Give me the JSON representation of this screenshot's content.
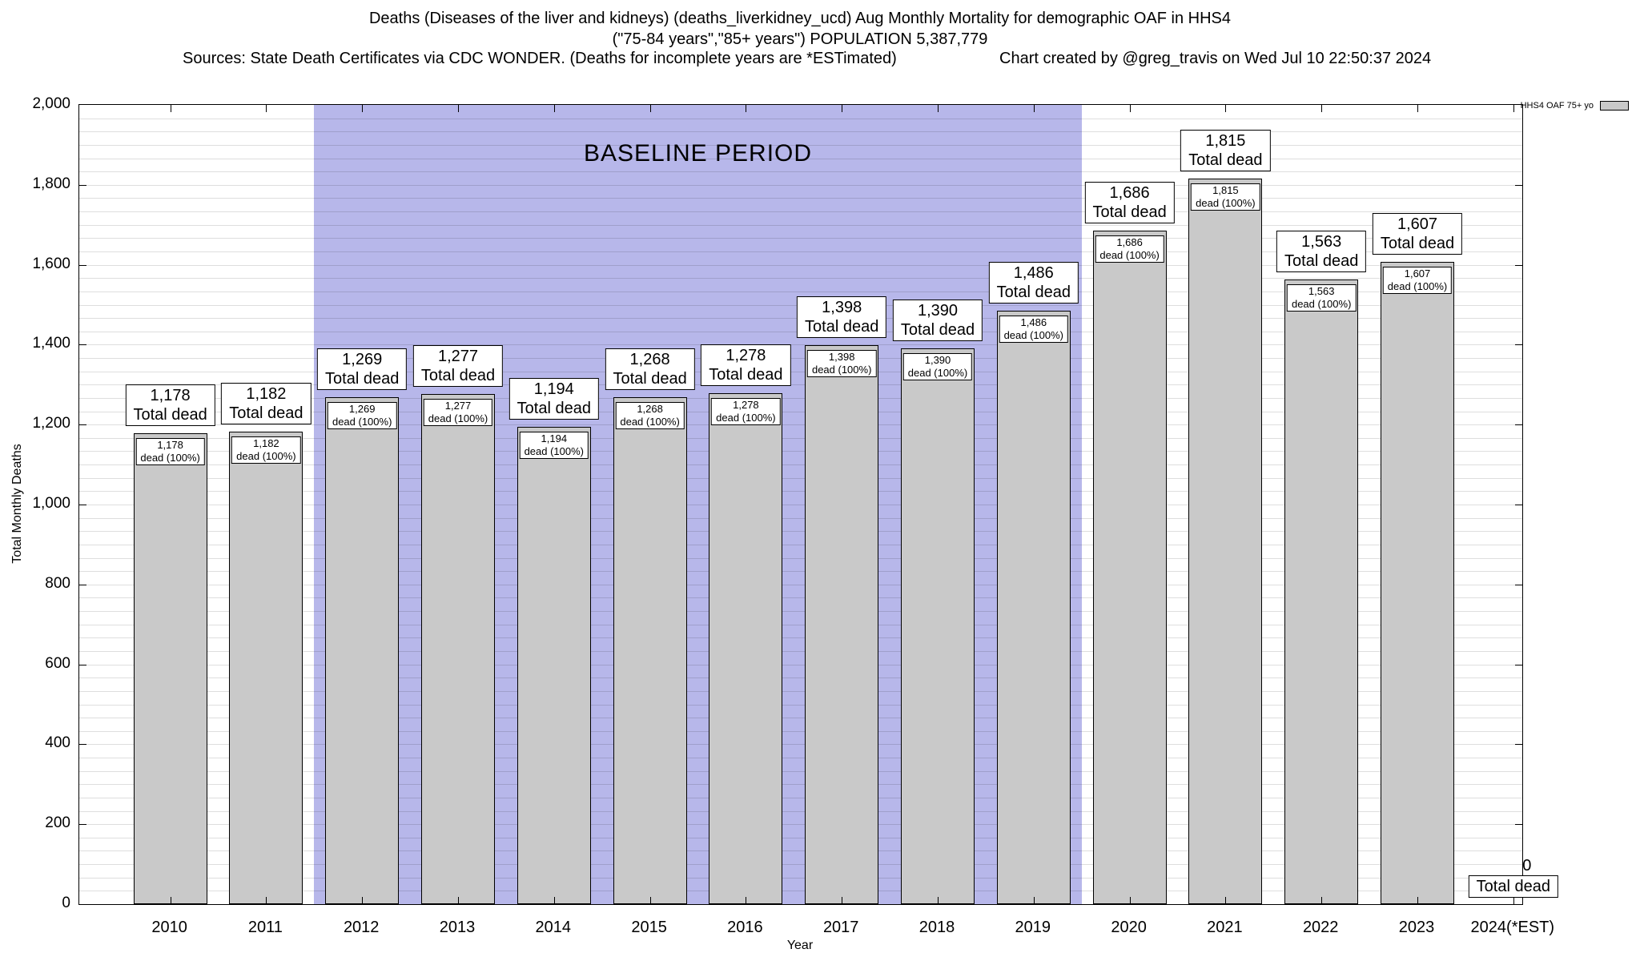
{
  "chart_data": {
    "type": "bar",
    "title": "Deaths (Diseases of the liver and kidneys) (deaths_liverkidney_ucd) Aug Monthly Mortality for demographic OAF in HHS4",
    "subtitle": "(\"75-84 years\",\"85+ years\") POPULATION 5,387,779",
    "sources_note": "Sources: State Death Certificates via CDC WONDER. (Deaths for incomplete years are *ESTimated)",
    "credit": "Chart created by @greg_travis on Wed Jul 10 22:50:37 2024",
    "xlabel": "Year",
    "ylabel": "Total Monthly Deaths",
    "ylim": [
      0,
      2000
    ],
    "ytick_interval": 200,
    "ytick_labels": [
      "0",
      "200",
      "400",
      "600",
      "800",
      "1,000",
      "1,200",
      "1,400",
      "1,600",
      "1,800",
      "2,000"
    ],
    "minor_gridline_count": 60,
    "grid": true,
    "legend": {
      "label": "HHS4 OAF 75+ yo",
      "position": "top-right",
      "swatch_color": "#c9c9c9"
    },
    "categories": [
      "2010",
      "2011",
      "2012",
      "2013",
      "2014",
      "2015",
      "2016",
      "2017",
      "2018",
      "2019",
      "2020",
      "2021",
      "2022",
      "2023",
      "2024(*EST)"
    ],
    "values": [
      1178,
      1182,
      1269,
      1277,
      1194,
      1268,
      1278,
      1398,
      1390,
      1486,
      1686,
      1815,
      1563,
      1607,
      0
    ],
    "formatted_values": [
      "1,178",
      "1,182",
      "1,269",
      "1,277",
      "1,194",
      "1,268",
      "1,278",
      "1,398",
      "1,390",
      "1,486",
      "1,686",
      "1,815",
      "1,563",
      "1,607",
      "0"
    ],
    "outer_label_line2": "Total dead",
    "inner_label_line2": "dead (100%)",
    "bar_color": "#c9c9c9",
    "baseline_region": {
      "label": "BASELINE PERIOD",
      "from_category": "2012",
      "to_category": "2019",
      "color": "#b7b7ea"
    }
  }
}
